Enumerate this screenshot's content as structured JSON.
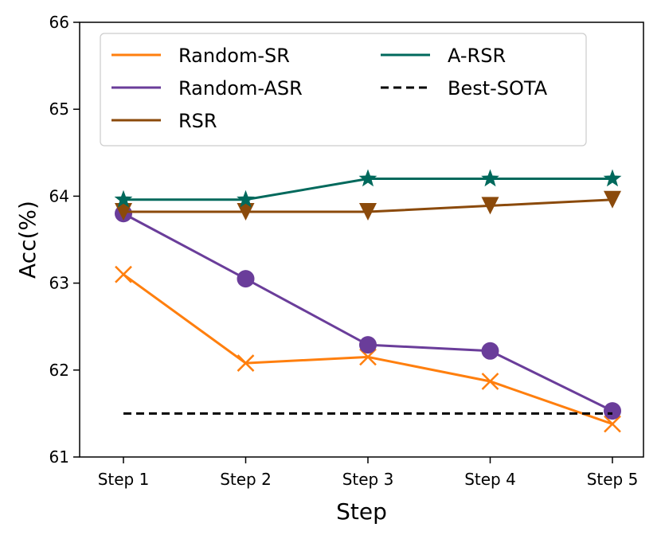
{
  "chart_data": {
    "type": "line",
    "title": "",
    "xlabel": "Step",
    "ylabel": "Acc(%)",
    "categories": [
      "Step 1",
      "Step 2",
      "Step 3",
      "Step 4",
      "Step 5"
    ],
    "ylim": [
      61,
      66
    ],
    "yticks": [
      "61",
      "62",
      "63",
      "64",
      "65",
      "66"
    ],
    "legend": "top-left",
    "grid": false,
    "series": [
      {
        "name": "Random-SR",
        "color": "#FF7F0E",
        "marker": "x",
        "dashed": false,
        "values": [
          63.1,
          62.08,
          62.15,
          61.87,
          61.38
        ]
      },
      {
        "name": "Random-ASR",
        "color": "#6A3D9A",
        "marker": "circle",
        "dashed": false,
        "values": [
          63.8,
          63.05,
          62.29,
          62.22,
          61.53
        ]
      },
      {
        "name": "RSR",
        "color": "#8B4A0B",
        "marker": "triangle-down",
        "dashed": false,
        "values": [
          63.82,
          63.82,
          63.82,
          63.89,
          63.96
        ]
      },
      {
        "name": "A-RSR",
        "color": "#00695C",
        "marker": "star",
        "dashed": false,
        "values": [
          63.96,
          63.96,
          64.2,
          64.2,
          64.2
        ]
      },
      {
        "name": "Best-SOTA",
        "color": "#000000",
        "marker": "none",
        "dashed": true,
        "values": [
          61.5,
          61.5,
          61.5,
          61.5,
          61.5
        ]
      }
    ]
  }
}
